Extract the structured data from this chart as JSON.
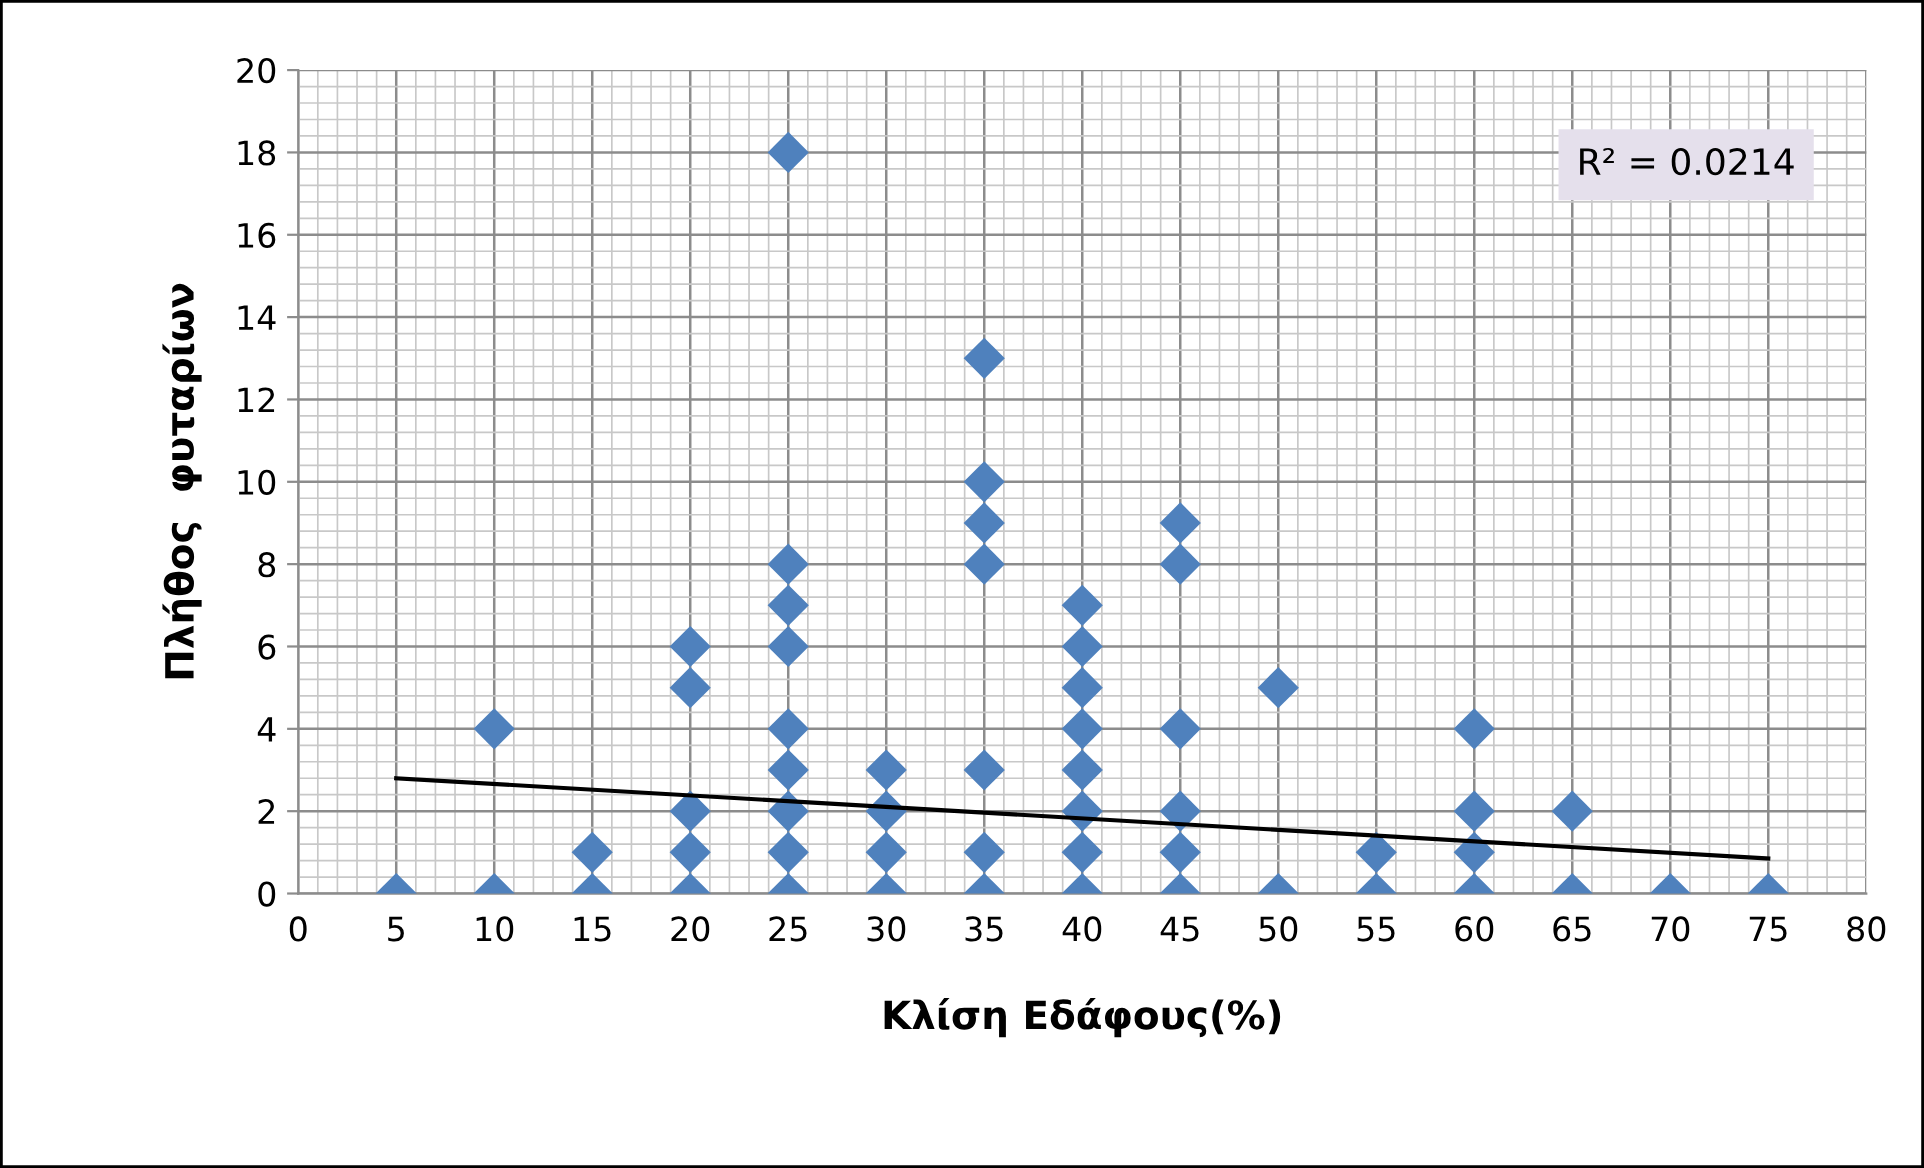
{
  "chart_data": {
    "type": "scatter",
    "xlabel": "Κλίση Εδάφους(%)",
    "ylabel": "Πλήθος  φυταρίων",
    "xlim": [
      0,
      80
    ],
    "xticks": [
      0,
      5,
      10,
      15,
      20,
      25,
      30,
      35,
      40,
      45,
      50,
      55,
      60,
      65,
      70,
      75,
      80
    ],
    "ylim": [
      0,
      20
    ],
    "yticks": [
      0,
      2,
      4,
      6,
      8,
      10,
      12,
      14,
      16,
      18,
      20
    ],
    "grid": true,
    "marker": "diamond",
    "annotations": [
      "R² = 0.0214"
    ],
    "series": [
      {
        "color": "#4f81bd",
        "x": [
          5,
          10,
          10,
          15,
          15,
          20,
          20,
          20,
          20,
          20,
          25,
          25,
          25,
          25,
          25,
          25,
          25,
          25,
          25,
          30,
          30,
          30,
          30,
          35,
          35,
          35,
          35,
          35,
          35,
          35,
          40,
          40,
          40,
          40,
          40,
          40,
          40,
          40,
          45,
          45,
          45,
          45,
          45,
          45,
          50,
          50,
          55,
          55,
          60,
          60,
          60,
          60,
          65,
          65,
          70,
          75
        ],
        "values": [
          0,
          0,
          4,
          0,
          1,
          0,
          1,
          2,
          5,
          6,
          0,
          1,
          2,
          3,
          4,
          6,
          7,
          8,
          18,
          0,
          1,
          2,
          3,
          0,
          1,
          3,
          8,
          9,
          10,
          13,
          0,
          1,
          2,
          3,
          4,
          5,
          6,
          7,
          0,
          1,
          2,
          4,
          8,
          9,
          0,
          5,
          0,
          1,
          0,
          1,
          2,
          4,
          0,
          2,
          0,
          0
        ]
      },
      {
        "type": "line",
        "color": "#000000",
        "marker": "none",
        "line_style": "solid",
        "x": [
          5,
          75
        ],
        "values": [
          2.8,
          0.85
        ]
      }
    ]
  }
}
